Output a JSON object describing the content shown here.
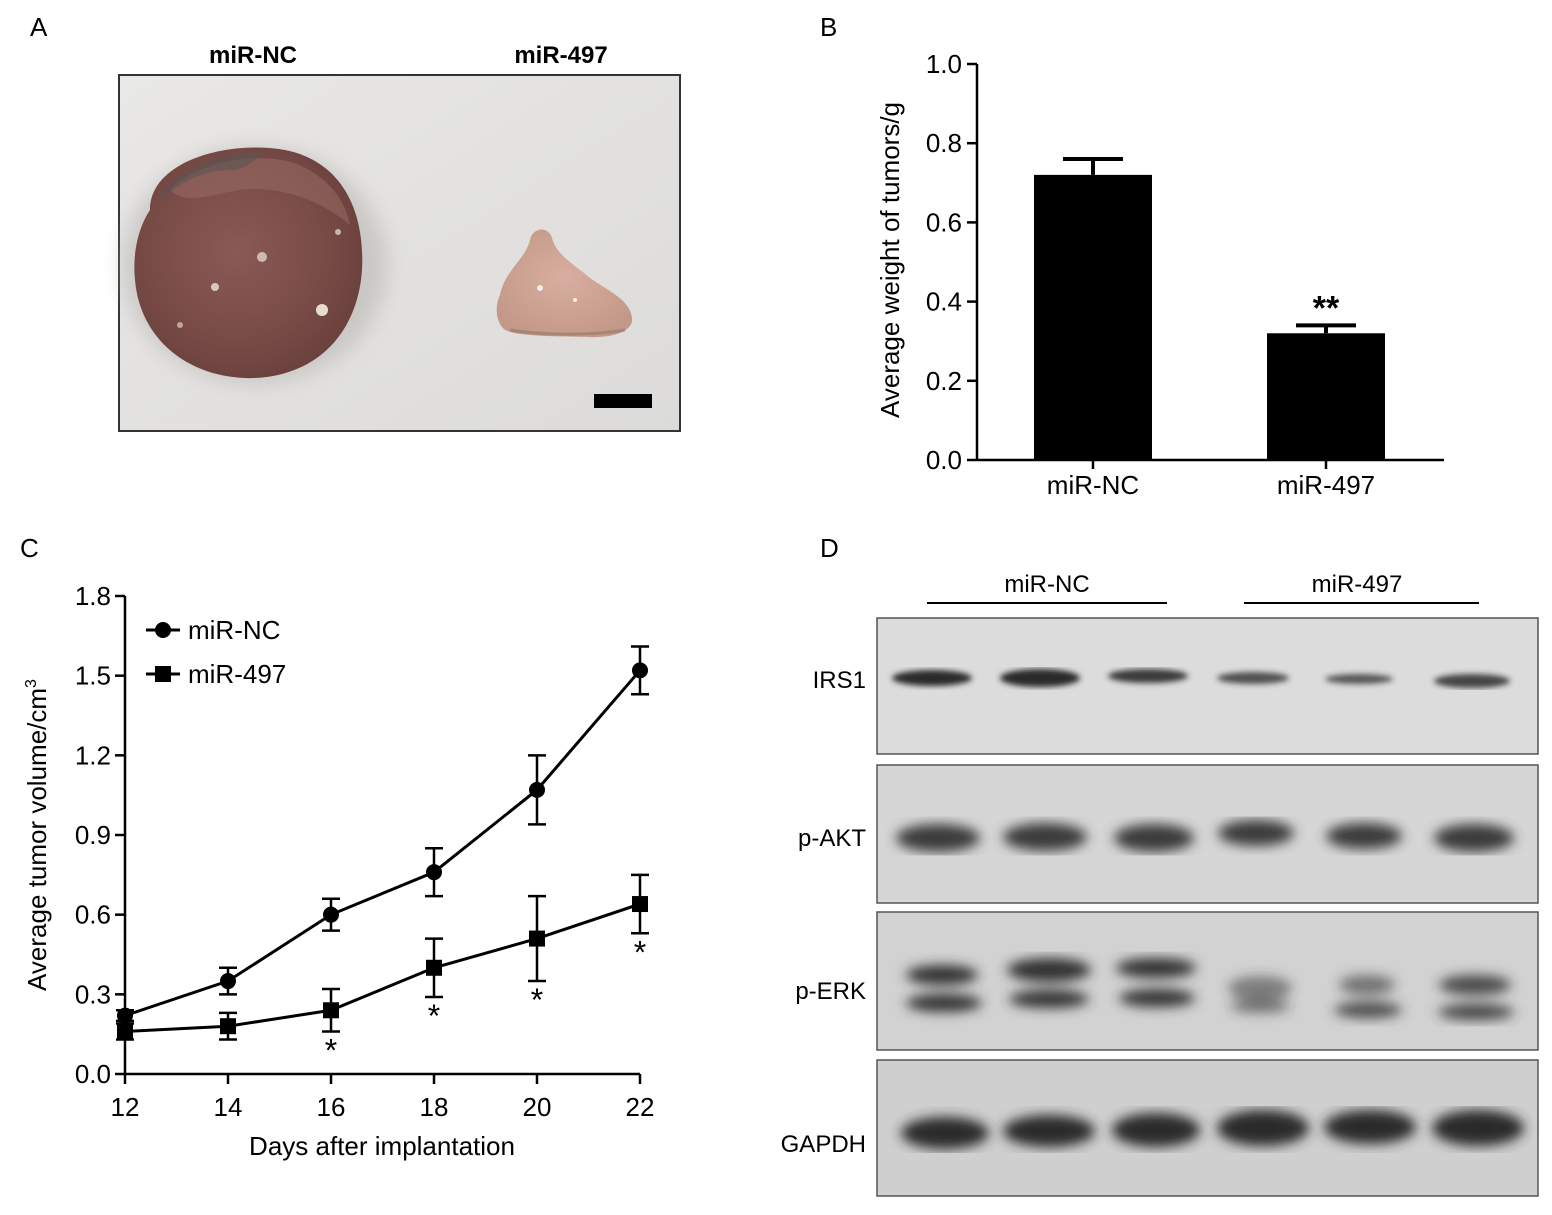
{
  "panel_a": {
    "letter": "A",
    "labels": [
      "miR-NC",
      "miR-497"
    ]
  },
  "panel_d": {
    "letter": "D",
    "group_labels": [
      "miR-NC",
      "miR-497"
    ],
    "row_labels": [
      "IRS1",
      "p-AKT",
      "p-ERK",
      "GAPDH"
    ]
  },
  "chart_data": [
    {
      "panel": "B",
      "type": "bar",
      "categories": [
        "miR-NC",
        "miR-497"
      ],
      "values": [
        0.72,
        0.32
      ],
      "errors": [
        0.04,
        0.02
      ],
      "annotations": [
        "",
        "**"
      ],
      "ylabel": "Average weight of tumors/g",
      "xlabel": "",
      "ylim": [
        0,
        1.0
      ],
      "yticks": [
        "0.0",
        "0.2",
        "0.4",
        "0.6",
        "0.8",
        "1.0"
      ]
    },
    {
      "panel": "C",
      "type": "line",
      "x": [
        12,
        14,
        16,
        18,
        20,
        22
      ],
      "series": [
        {
          "name": "miR-NC",
          "marker": "circle",
          "values": [
            0.22,
            0.35,
            0.6,
            0.76,
            1.07,
            1.52
          ],
          "errors": [
            0.02,
            0.05,
            0.06,
            0.09,
            0.13,
            0.09
          ]
        },
        {
          "name": "miR-497",
          "marker": "square",
          "values": [
            0.16,
            0.18,
            0.24,
            0.4,
            0.51,
            0.64
          ],
          "errors": [
            0.03,
            0.05,
            0.08,
            0.11,
            0.16,
            0.11
          ]
        }
      ],
      "annotations": [
        {
          "x": 16,
          "text": "*"
        },
        {
          "x": 18,
          "text": "*"
        },
        {
          "x": 20,
          "text": "*"
        },
        {
          "x": 22,
          "text": "*"
        }
      ],
      "xlabel": "Days after implantation",
      "ylabel": "Average tumor volume/cm",
      "ylabel_superscript": "3",
      "xlim": [
        12,
        22
      ],
      "ylim": [
        0,
        1.8
      ],
      "xticks": [
        "12",
        "14",
        "16",
        "18",
        "20",
        "22"
      ],
      "yticks": [
        "0.0",
        "0.3",
        "0.6",
        "0.9",
        "1.2",
        "1.5",
        "1.8"
      ],
      "legend_position": "top-left"
    }
  ]
}
